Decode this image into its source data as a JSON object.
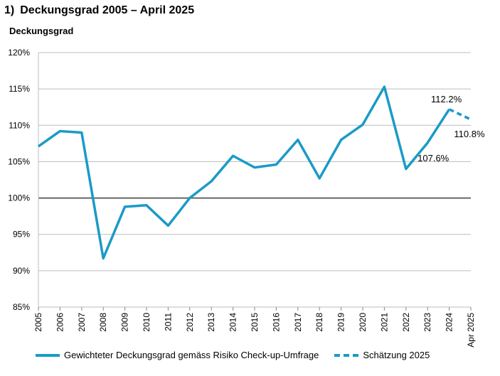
{
  "header": {
    "number": "1)",
    "title": "Deckungsgrad 2005 – April 2025"
  },
  "chart_data": {
    "type": "line",
    "ylabel": "Deckungsgrad",
    "ylim": [
      85,
      120
    ],
    "yticks": [
      85,
      90,
      95,
      100,
      105,
      110,
      115,
      120
    ],
    "ytick_labels": [
      "85%",
      "90%",
      "95%",
      "100%",
      "105%",
      "110%",
      "115%",
      "120%"
    ],
    "reference_line": 100,
    "grid": true,
    "categories": [
      "2005",
      "2006",
      "2007",
      "2008",
      "2009",
      "2010",
      "2011",
      "2012",
      "2013",
      "2014",
      "2015",
      "2016",
      "2017",
      "2018",
      "2019",
      "2020",
      "2021",
      "2022",
      "2023",
      "2024",
      "Apr 2025"
    ],
    "series": [
      {
        "name": "Gewichteter Deckungsgrad gemäss Risiko Check-up-Umfrage",
        "style": "solid",
        "color": "#1a9bc7",
        "values": [
          107.1,
          109.2,
          109.0,
          91.7,
          98.8,
          99.0,
          96.2,
          100.0,
          102.3,
          105.8,
          104.2,
          104.6,
          108.0,
          102.7,
          108.0,
          110.1,
          115.3,
          104.0,
          107.6,
          112.2,
          null
        ]
      },
      {
        "name": "Schätzung 2025",
        "style": "dashed",
        "color": "#1a9bc7",
        "values": [
          null,
          null,
          null,
          null,
          null,
          null,
          null,
          null,
          null,
          null,
          null,
          null,
          null,
          null,
          null,
          null,
          null,
          null,
          null,
          112.2,
          110.8
        ]
      }
    ],
    "annotations": [
      {
        "text": "112.2%",
        "category": "2024",
        "value": 112.2
      },
      {
        "text": "110.8%",
        "category": "Apr 2025",
        "value": 110.8
      },
      {
        "text": "107.6%",
        "category": "2023",
        "value": 107.6
      }
    ],
    "legend_position": "bottom"
  }
}
